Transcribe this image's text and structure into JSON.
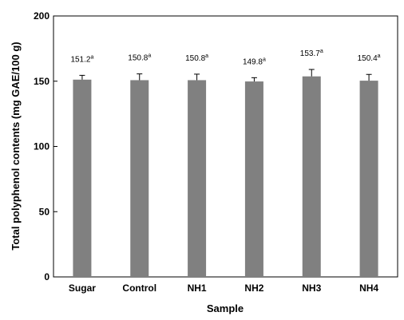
{
  "chart_data": {
    "type": "bar",
    "xlabel": "Sample",
    "ylabel": "Total polyphenol contents (mg GAE/100 g)",
    "categories": [
      "Sugar",
      "Control",
      "NH1",
      "NH2",
      "NH3",
      "NH4"
    ],
    "values": [
      151.2,
      150.8,
      150.8,
      149.8,
      153.7,
      150.4
    ],
    "errors": [
      3.3,
      4.8,
      4.6,
      2.9,
      5.3,
      4.8
    ],
    "data_labels": [
      "151.2",
      "150.8",
      "150.8",
      "149.8",
      "153.7",
      "150.4"
    ],
    "significance": [
      "a",
      "a",
      "a",
      "a",
      "a",
      "a"
    ],
    "ylim": [
      0,
      200
    ],
    "yticks": [
      0,
      50,
      100,
      150,
      200
    ],
    "grid": false,
    "legend": "none",
    "bar_color": "#808080"
  }
}
